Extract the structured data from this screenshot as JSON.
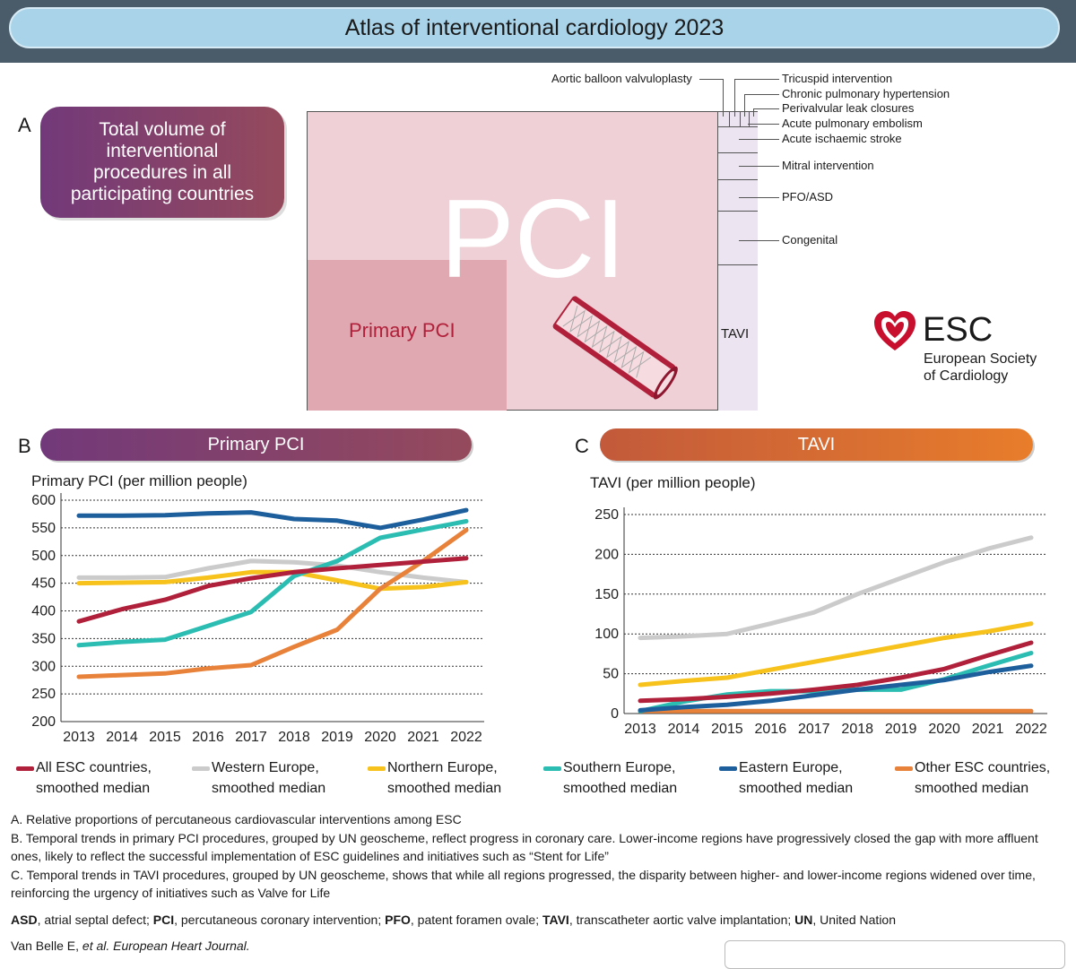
{
  "header": {
    "title": "Atlas of interventional cardiology 2023"
  },
  "panel_a": {
    "letter": "A",
    "box_text": "Total volume of interventional procedures in all participating countries",
    "pci_label": "PCI",
    "primary_pci_label": "Primary PCI",
    "tavi_label": "TAVI",
    "side_labels": {
      "aortic": "Aortic balloon valvuloplasty",
      "tricuspid": "Tricuspid intervention",
      "pulm_htn": "Chronic pulmonary hypertension",
      "perivalvular": "Perivalvular leak closures",
      "pulm_emb": "Acute pulmonary embolism",
      "stroke": "Acute ischaemic stroke",
      "mitral": "Mitral intervention",
      "pfo": "PFO/ASD",
      "congenital": "Congenital"
    }
  },
  "logo": {
    "abbr": "ESC",
    "line1": "European Society",
    "line2": "of Cardiology"
  },
  "panel_b": {
    "letter": "B",
    "pill": "Primary PCI"
  },
  "panel_c": {
    "letter": "C",
    "pill": "TAVI"
  },
  "colors": {
    "all": "#b0203a",
    "western": "#cbcbcb",
    "northern": "#f6c21b",
    "southern": "#2bbcb2",
    "eastern": "#1d5e9c",
    "other": "#e8823a"
  },
  "chart_data": [
    {
      "type": "line",
      "title": "Primary PCI (per million people)",
      "x": [
        "2013",
        "2014",
        "2015",
        "2016",
        "2017",
        "2018",
        "2019",
        "2020",
        "2021",
        "2022"
      ],
      "ylim": [
        200,
        600
      ],
      "yticks": [
        200,
        250,
        300,
        350,
        400,
        450,
        500,
        550,
        600
      ],
      "series": [
        {
          "name": "Western Europe",
          "key": "western",
          "values": [
            460,
            460,
            461,
            477,
            490,
            488,
            482,
            470,
            460,
            452
          ]
        },
        {
          "name": "Northern Europe",
          "key": "northern",
          "values": [
            450,
            451,
            452,
            460,
            470,
            470,
            455,
            440,
            443,
            452
          ]
        },
        {
          "name": "Other ESC countries",
          "key": "other",
          "values": [
            281,
            284,
            287,
            296,
            302,
            335,
            366,
            440,
            490,
            546
          ]
        },
        {
          "name": "Southern Europe",
          "key": "southern",
          "values": [
            338,
            344,
            348,
            373,
            398,
            463,
            490,
            532,
            547,
            562
          ]
        },
        {
          "name": "Eastern Europe",
          "key": "eastern",
          "values": [
            572,
            572,
            573,
            576,
            578,
            566,
            563,
            550,
            565,
            582
          ]
        },
        {
          "name": "All ESC countries",
          "key": "all",
          "values": [
            381,
            403,
            420,
            445,
            459,
            470,
            477,
            483,
            489,
            495
          ]
        }
      ]
    },
    {
      "type": "line",
      "title": "TAVI (per million people)",
      "x": [
        "2013",
        "2014",
        "2015",
        "2016",
        "2017",
        "2018",
        "2019",
        "2020",
        "2021",
        "2022"
      ],
      "ylim": [
        0,
        250
      ],
      "yticks": [
        0,
        50,
        100,
        150,
        200,
        250
      ],
      "series": [
        {
          "name": "Western Europe",
          "key": "western",
          "values": [
            95,
            97,
            100,
            113,
            127,
            150,
            170,
            190,
            207,
            221
          ]
        },
        {
          "name": "Northern Europe",
          "key": "northern",
          "values": [
            36,
            41,
            45,
            55,
            65,
            75,
            85,
            95,
            103,
            113
          ]
        },
        {
          "name": "Other ESC countries",
          "key": "other",
          "values": [
            3,
            3,
            3,
            3,
            3,
            3,
            3,
            3,
            3,
            3
          ]
        },
        {
          "name": "Southern Europe",
          "key": "southern",
          "values": [
            3,
            15,
            24,
            28,
            28,
            30,
            30,
            43,
            60,
            76
          ]
        },
        {
          "name": "Eastern Europe",
          "key": "eastern",
          "values": [
            4,
            8,
            11,
            16,
            23,
            30,
            36,
            42,
            52,
            60
          ]
        },
        {
          "name": "All ESC countries",
          "key": "all",
          "values": [
            16,
            18,
            21,
            25,
            30,
            36,
            45,
            56,
            73,
            89
          ]
        }
      ]
    }
  ],
  "legend": [
    {
      "key": "all",
      "line1": "All ESC countries,",
      "line2": "smoothed median"
    },
    {
      "key": "western",
      "line1": "Western Europe,",
      "line2": "smoothed median"
    },
    {
      "key": "northern",
      "line1": "Northern Europe,",
      "line2": "smoothed median"
    },
    {
      "key": "southern",
      "line1": "Southern Europe,",
      "line2": "smoothed median"
    },
    {
      "key": "eastern",
      "line1": "Eastern Europe,",
      "line2": "smoothed median"
    },
    {
      "key": "other",
      "line1": "Other ESC countries,",
      "line2": "smoothed median"
    }
  ],
  "notes": {
    "a": "A. Relative proportions of percutaneous cardiovascular interventions among ESC",
    "b": "B. Temporal trends in primary PCI procedures, grouped by UN geoscheme, reflect progress in coronary care. Lower-income regions have progressively closed the gap with more affluent ones, likely to reflect the successful implementation of ESC guidelines and initiatives such as “Stent for Life”",
    "c": "C. Temporal trends in TAVI procedures, grouped by UN geoscheme, shows that while all regions progressed, the disparity between higher- and lower-income regions widened over time, reinforcing the urgency of initiatives such as Valve for Life"
  },
  "abbreviations": [
    {
      "term": "ASD",
      "def": ", atrial septal defect; "
    },
    {
      "term": "PCI",
      "def": ", percutaneous coronary intervention; "
    },
    {
      "term": "PFO",
      "def": ", patent foramen ovale; "
    },
    {
      "term": "TAVI",
      "def": ", transcatheter aortic valve implantation; "
    },
    {
      "term": "UN",
      "def": ", United Nation"
    }
  ],
  "citation": {
    "authors": "Van Belle E, ",
    "etal": "et al. European Heart Journal."
  }
}
